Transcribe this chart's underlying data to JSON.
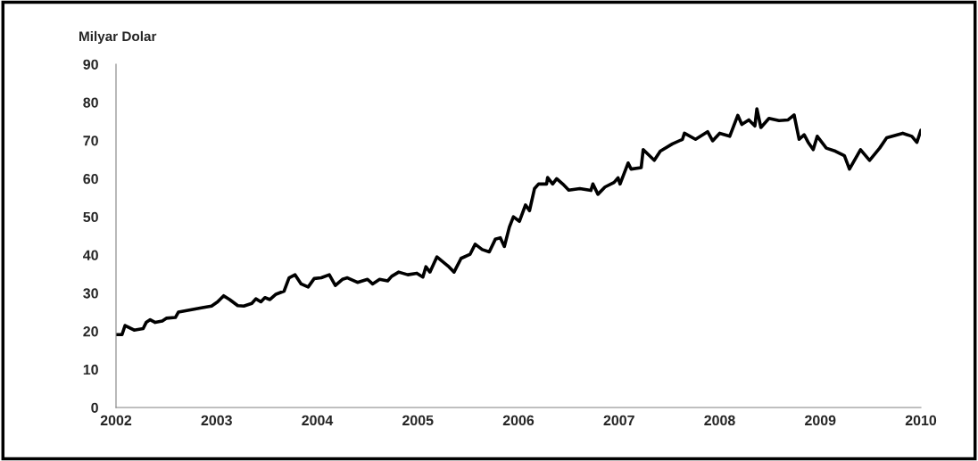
{
  "chart_data": {
    "type": "line",
    "ylabel": "Milyar Dolar",
    "xlim": [
      2002,
      2010
    ],
    "xticks": [
      2002,
      2003,
      2004,
      2005,
      2006,
      2007,
      2008,
      2009,
      2010
    ],
    "ylim": [
      0,
      90
    ],
    "yticks": [
      0,
      10,
      20,
      30,
      40,
      50,
      60,
      70,
      80,
      90
    ],
    "grid": false,
    "marker": "none",
    "line_style": "solid",
    "x": [
      2002.0,
      2002.06,
      2002.09,
      2002.18,
      2002.27,
      2002.3,
      2002.34,
      2002.39,
      2002.46,
      2002.5,
      2002.59,
      2002.62,
      2002.74,
      2002.86,
      2002.95,
      2003.01,
      2003.07,
      2003.13,
      2003.21,
      2003.27,
      2003.35,
      2003.39,
      2003.44,
      2003.48,
      2003.53,
      2003.59,
      2003.67,
      2003.72,
      2003.78,
      2003.84,
      2003.91,
      2003.97,
      2004.04,
      2004.12,
      2004.18,
      2004.25,
      2004.3,
      2004.4,
      2004.5,
      2004.55,
      2004.62,
      2004.7,
      2004.74,
      2004.81,
      2004.9,
      2004.99,
      2005.05,
      2005.08,
      2005.12,
      2005.19,
      2005.3,
      2005.36,
      2005.43,
      2005.52,
      2005.57,
      2005.64,
      2005.71,
      2005.77,
      2005.82,
      2005.86,
      2005.91,
      2005.95,
      2006.01,
      2006.07,
      2006.11,
      2006.16,
      2006.2,
      2006.28,
      2006.29,
      2006.34,
      2006.38,
      2006.44,
      2006.5,
      2006.61,
      2006.72,
      2006.74,
      2006.79,
      2006.86,
      2006.95,
      2006.99,
      2007.01,
      2007.09,
      2007.12,
      2007.22,
      2007.24,
      2007.35,
      2007.41,
      2007.53,
      2007.63,
      2007.65,
      2007.76,
      2007.88,
      2007.93,
      2008.0,
      2008.1,
      2008.18,
      2008.22,
      2008.29,
      2008.35,
      2008.37,
      2008.41,
      2008.49,
      2008.59,
      2008.68,
      2008.74,
      2008.79,
      2008.84,
      2008.88,
      2008.93,
      2008.97,
      2009.06,
      2009.15,
      2009.24,
      2009.29,
      2009.4,
      2009.49,
      2009.59,
      2009.66,
      2009.82,
      2009.91,
      2009.96,
      2010.0
    ],
    "series": [
      {
        "color": "#000000",
        "values": [
          19.1,
          19.1,
          21.5,
          20.3,
          20.7,
          22.3,
          23,
          22.3,
          22.7,
          23.4,
          23.6,
          25,
          25.6,
          26.2,
          26.6,
          27.7,
          29.3,
          28.3,
          26.7,
          26.6,
          27.3,
          28.5,
          27.7,
          28.8,
          28.3,
          29.7,
          30.5,
          34,
          34.8,
          32.4,
          31.6,
          33.8,
          34,
          34.8,
          32,
          33.6,
          34,
          32.8,
          33.6,
          32.4,
          33.6,
          33.2,
          34.4,
          35.5,
          34.8,
          35.2,
          34.2,
          36.9,
          35.5,
          39.5,
          37.1,
          35.5,
          39.1,
          40.2,
          42.8,
          41.4,
          40.8,
          44.1,
          44.5,
          42.2,
          47.3,
          50,
          48.8,
          53.1,
          51.6,
          57.4,
          58.6,
          58.6,
          60.3,
          58.6,
          60,
          58.6,
          57,
          57.4,
          56.9,
          58.6,
          55.9,
          57.8,
          59,
          60.2,
          58.6,
          64.1,
          62.5,
          62.9,
          67.6,
          64.8,
          67.2,
          69.1,
          70.3,
          71.9,
          70.3,
          72.3,
          69.9,
          71.9,
          71.1,
          76.6,
          74.2,
          75.4,
          73.8,
          78.3,
          73.4,
          75.8,
          75.2,
          75.4,
          76.7,
          70.3,
          71.5,
          69.5,
          67.6,
          71.1,
          68,
          67.2,
          66,
          62.5,
          67.6,
          64.8,
          68,
          70.7,
          71.9,
          71.1,
          69.5,
          72.7
        ]
      }
    ]
  }
}
